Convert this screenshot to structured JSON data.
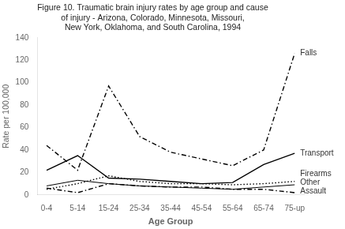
{
  "chart_data": {
    "type": "line",
    "title": "Figure 10. Traumatic brain injury rates by age group and cause\nof injury - Arizona, Colorado, Minnesota, Missouri,\nNew York, Oklahoma, and South Carolina, 1994",
    "x_label": "Age Group",
    "y_label": "Rate per 100,000",
    "categories": [
      "0-4",
      "5-14",
      "15-24",
      "25-34",
      "35-44",
      "45-54",
      "55-64",
      "65-74",
      "75-up"
    ],
    "series": [
      {
        "name": "Falls",
        "color": "#000000",
        "line_style": "dashdot",
        "values": [
          44,
          22,
          97,
          52,
          38,
          32,
          26,
          40,
          126
        ]
      },
      {
        "name": "Transport",
        "color": "#000000",
        "line_style": "solid",
        "values": [
          22,
          35,
          15,
          14,
          12,
          10,
          11,
          27,
          37
        ]
      },
      {
        "name": "Firearms",
        "color": "#000000",
        "line_style": "dotted",
        "values": [
          5,
          10,
          17,
          12,
          10,
          10,
          9,
          10,
          12
        ]
      },
      {
        "name": "Other",
        "color": "#000000",
        "line_style": "solid",
        "values": [
          8,
          13,
          10,
          8,
          7,
          6,
          5,
          7,
          9
        ]
      },
      {
        "name": "Assault",
        "color": "#000000",
        "line_style": "dashdot",
        "values": [
          6,
          2,
          10,
          8,
          7,
          7,
          5,
          5,
          2
        ]
      }
    ],
    "annotations": [
      {
        "text": "Falls",
        "x": "75-up",
        "y": 126
      },
      {
        "text": "Transport",
        "x": "75-up",
        "y": 37
      },
      {
        "text": "Firearms",
        "x": "75-up",
        "y": 12
      },
      {
        "text": "Other",
        "x": "75-up",
        "y": 9
      },
      {
        "text": "Assault",
        "x": "75-up",
        "y": 2
      }
    ],
    "ylim": [
      0,
      140
    ],
    "yticks": [
      0,
      20,
      40,
      60,
      80,
      100,
      120,
      140
    ],
    "grid": false
  }
}
